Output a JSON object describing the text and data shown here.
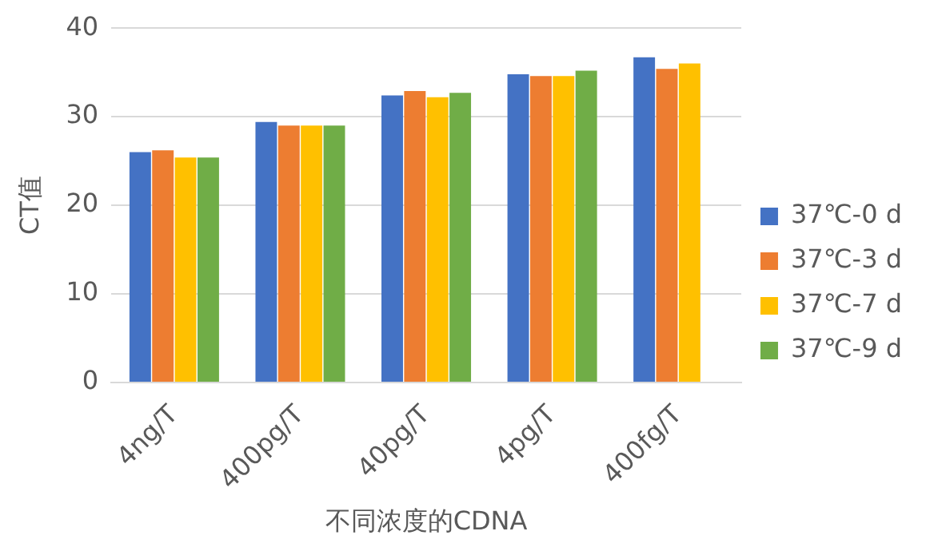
{
  "chart_data": {
    "type": "bar",
    "xlabel": "不同浓度的CDNA",
    "ylabel": "CT值",
    "categories": [
      "4ng/T",
      "400pg/T",
      "40pg/T",
      "4pg/T",
      "400fg/T"
    ],
    "series": [
      {
        "name": "37℃-0 d",
        "color": "#4472c4",
        "values": [
          26.0,
          29.4,
          32.4,
          34.8,
          36.7
        ]
      },
      {
        "name": "37℃-3 d",
        "color": "#ed7d31",
        "values": [
          26.2,
          29.0,
          32.9,
          34.6,
          35.4
        ]
      },
      {
        "name": "37℃-7 d",
        "color": "#ffc000",
        "values": [
          25.4,
          29.0,
          32.2,
          34.6,
          36.0
        ]
      },
      {
        "name": "37℃-9 d",
        "color": "#70ad47",
        "values": [
          25.4,
          29.0,
          32.7,
          35.2,
          null
        ]
      }
    ],
    "ylim": [
      0,
      40
    ],
    "yticks": [
      0,
      10,
      20,
      30,
      40
    ],
    "grid": "y",
    "legend": "right"
  }
}
